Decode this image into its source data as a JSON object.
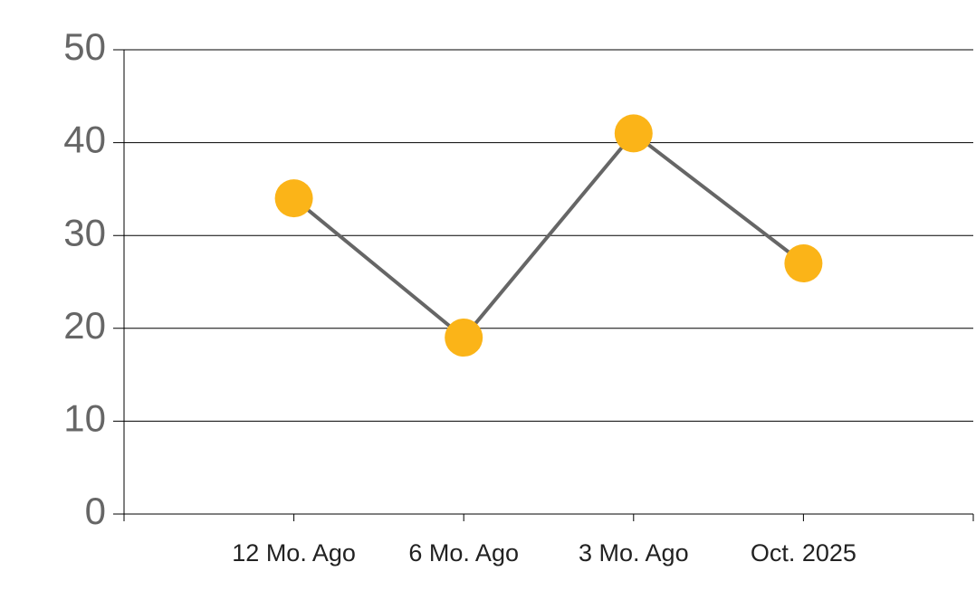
{
  "chart_data": {
    "type": "line",
    "categories": [
      "12 Mo. Ago",
      "6 Mo. Ago",
      "3 Mo. Ago",
      "Oct. 2025"
    ],
    "series": [
      {
        "values": [
          34,
          19,
          41,
          27
        ],
        "color": "#666666",
        "marker_color": "#fbb418"
      }
    ],
    "ylim": [
      0,
      50
    ],
    "yticks": [
      0,
      10,
      20,
      30,
      40,
      50
    ],
    "grid": true
  }
}
